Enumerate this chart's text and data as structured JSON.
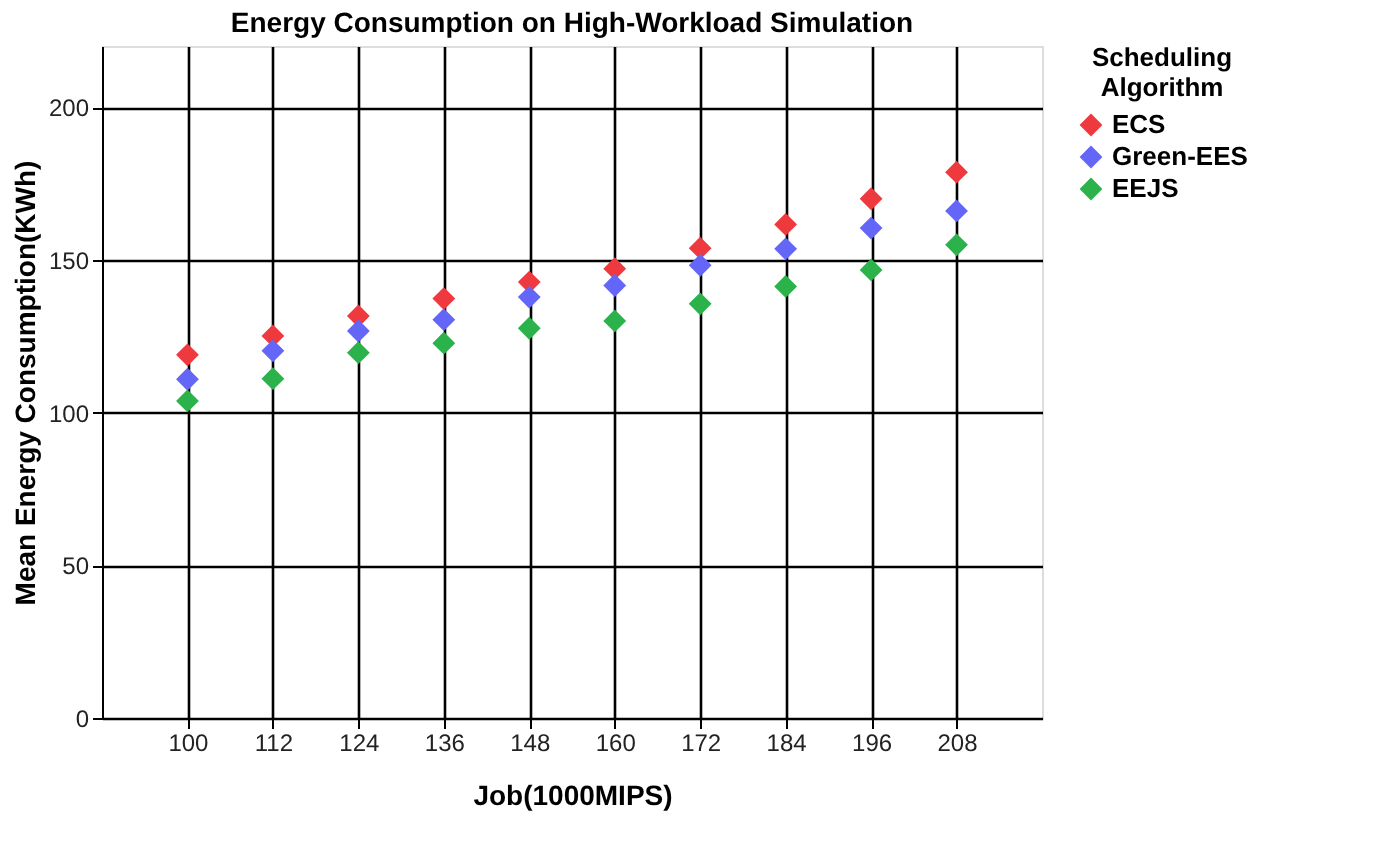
{
  "chart_data": {
    "type": "scatter",
    "title": "Energy Consumption on High-Workload Simulation",
    "xlabel": "Job(1000MIPS)",
    "ylabel": "Mean Energy Consumption(KWh)",
    "legend_title": "Scheduling Algorithm",
    "categories": [
      "100",
      "112",
      "124",
      "136",
      "148",
      "160",
      "172",
      "184",
      "196",
      "208"
    ],
    "series": [
      {
        "name": "ECS",
        "color": "#ee3a3f",
        "values": [
          118.9,
          125.1,
          131.6,
          137.3,
          142.7,
          147.1,
          153.8,
          161.6,
          170,
          178.7
        ]
      },
      {
        "name": "Green-EES",
        "color": "#6466f7",
        "values": [
          110.9,
          120.2,
          126.7,
          130.4,
          137.8,
          141.6,
          148.2,
          153.6,
          160.4,
          166
        ]
      },
      {
        "name": "EEJS",
        "color": "#2bb24a",
        "values": [
          103.8,
          111.1,
          119.6,
          122.7,
          127.6,
          130,
          135.6,
          141.3,
          146.7,
          154.9
        ]
      }
    ],
    "ylim": [
      0,
      220
    ],
    "yticks": [
      0,
      50,
      100,
      150,
      200
    ],
    "grid": true,
    "legend": "top right",
    "marker": "diamond"
  }
}
